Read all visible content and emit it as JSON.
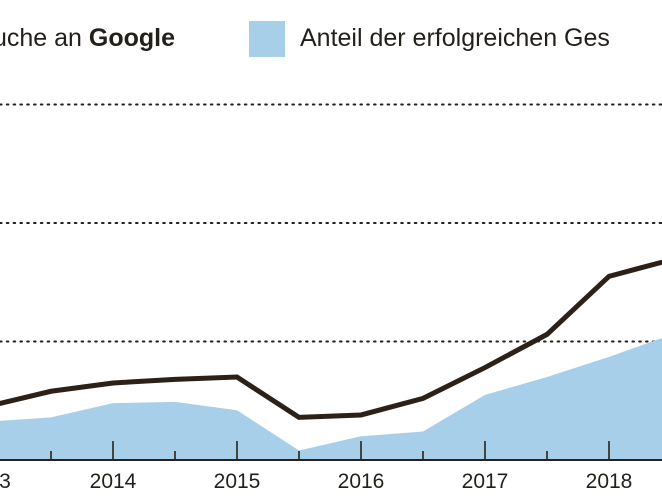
{
  "chart_data": {
    "type": "line",
    "title": "",
    "legend": [
      {
        "series": "line",
        "label_prefix": "uche an ",
        "label_bold": "Google",
        "marker": "line"
      },
      {
        "series": "area",
        "label": "Anteil der erfolgreichen Ges",
        "marker": "square"
      }
    ],
    "legend_placement": "top",
    "x": [
      2012.94,
      2013.5,
      2014.0,
      2014.5,
      2015.0,
      2015.5,
      2016.0,
      2016.5,
      2017.0,
      2017.5,
      2018.0,
      2018.43
    ],
    "x_tick_labels": [
      "3",
      "2014",
      "2015",
      "2016",
      "2017",
      "2018"
    ],
    "x_tick_values": [
      2013,
      2014,
      2015,
      2016,
      2017,
      2018
    ],
    "x_minor_ticks": [
      2013.5,
      2014.5,
      2015.5,
      2016.5,
      2017.5
    ],
    "xlim": [
      2013.09,
      2018.43
    ],
    "series": [
      {
        "name": "Anfragen / Gesuche an Google",
        "kind": "line",
        "values": [
          0.44,
          0.58,
          0.65,
          0.68,
          0.7,
          0.36,
          0.38,
          0.52,
          0.78,
          1.06,
          1.55,
          1.67
        ]
      },
      {
        "name": "Anteil der erfolgreichen Gesuche",
        "kind": "area",
        "values": [
          0.32,
          0.36,
          0.48,
          0.49,
          0.42,
          0.08,
          0.2,
          0.24,
          0.55,
          0.7,
          0.87,
          1.03
        ]
      }
    ],
    "ylim": [
      0,
      3.0
    ],
    "gridlines_y": [
      1,
      2,
      3
    ],
    "grid": true,
    "xlabel": "",
    "ylabel": "",
    "colors": {
      "line": "#2b2119",
      "area": "#a8cfea",
      "grid": "#231f1a",
      "text": "#231f1a"
    }
  }
}
